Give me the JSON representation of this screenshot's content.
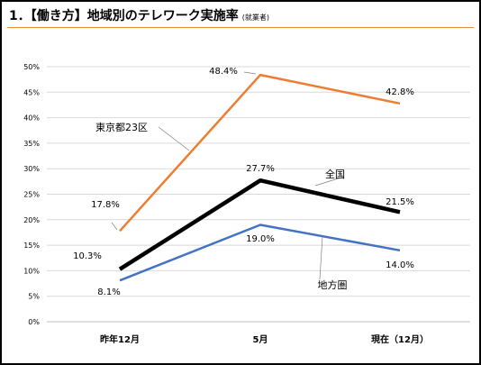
{
  "title": {
    "main": "1．【働き方】地域別のテレワーク実施率",
    "sub": "(就業者)"
  },
  "colors": {
    "tokyo": "#ed7d31",
    "national": "#000000",
    "regional": "#4472c4",
    "title_rule": "#e58a3a",
    "grid": "#d9d9d9"
  },
  "chart_data": {
    "type": "line",
    "categories": [
      "昨年12月",
      "5月",
      "現在（12月）"
    ],
    "ylim": [
      0,
      50
    ],
    "y_ticks": [
      "0%",
      "5%",
      "10%",
      "15%",
      "20%",
      "25%",
      "30%",
      "35%",
      "40%",
      "45%",
      "50%"
    ],
    "grid": true,
    "series": [
      {
        "key": "tokyo",
        "name": "東京都23区",
        "values": [
          17.8,
          48.4,
          42.8
        ],
        "labels": [
          "17.8%",
          "48.4%",
          "42.8%"
        ]
      },
      {
        "key": "national",
        "name": "全国",
        "values": [
          10.3,
          27.7,
          21.5
        ],
        "labels": [
          "10.3%",
          "27.7%",
          "21.5%"
        ]
      },
      {
        "key": "regional",
        "name": "地方圏",
        "values": [
          8.1,
          19.0,
          14.0
        ],
        "labels": [
          "8.1%",
          "19.0%",
          "14.0%"
        ]
      }
    ]
  }
}
